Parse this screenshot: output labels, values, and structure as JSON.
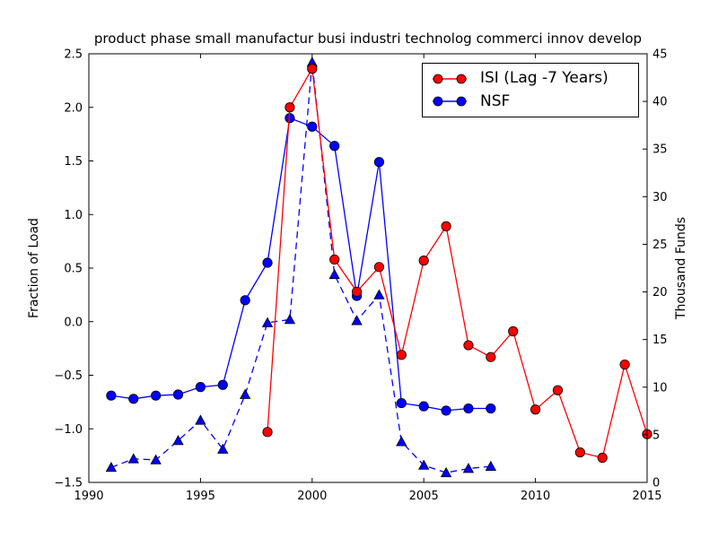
{
  "chart_data": {
    "type": "line",
    "title": "product phase small manufactur busi industri technolog commerci innov develop",
    "xlabel": "",
    "left_ylabel": "Fraction of Load",
    "right_ylabel": "Thousand Funds",
    "xlim": [
      1990,
      2015
    ],
    "left_ylim": [
      -1.5,
      2.5
    ],
    "right_ylim": [
      0,
      45
    ],
    "x_tick_labels": [
      "1990",
      "1995",
      "2000",
      "2005",
      "2010",
      "2015"
    ],
    "x_tick_values": [
      1990,
      1995,
      2000,
      2005,
      2010,
      2015
    ],
    "left_tick_labels": [
      "2.5",
      "2.0",
      "1.5",
      "1.0",
      "0.5",
      "0.0",
      "−0.5",
      "−1.0",
      "−1.5"
    ],
    "left_tick_values": [
      2.5,
      2.0,
      1.5,
      1.0,
      0.5,
      0.0,
      -0.5,
      -1.0,
      -1.5
    ],
    "right_tick_labels": [
      "45",
      "40",
      "35",
      "30",
      "25",
      "20",
      "15",
      "10",
      "5",
      "0"
    ],
    "right_tick_values": [
      45,
      40,
      35,
      30,
      25,
      20,
      15,
      10,
      5,
      0
    ],
    "grid": false,
    "legend_position": "upper right",
    "legend_entries": [
      "ISI (Lag -7 Years)",
      "NSF"
    ],
    "series": [
      {
        "name": "ISI (Lag -7 Years)",
        "color": "#ff0000",
        "style": "solid",
        "marker": "circle",
        "axis": "left",
        "in_legend": true,
        "x": [
          1998,
          1999,
          2000,
          2001,
          2002,
          2003,
          2004,
          2005,
          2006,
          2007,
          2008,
          2009,
          2010,
          2011,
          2012,
          2013,
          2014,
          2015
        ],
        "y": [
          -1.03,
          2.0,
          2.36,
          0.58,
          0.28,
          0.51,
          -0.31,
          0.57,
          0.89,
          -0.22,
          -0.33,
          -0.09,
          -0.82,
          -0.64,
          -1.22,
          -1.27,
          -0.4,
          -1.05
        ]
      },
      {
        "name": "NSF",
        "color": "#0000ff",
        "style": "solid",
        "marker": "circle",
        "axis": "left",
        "in_legend": true,
        "x": [
          1991,
          1992,
          1993,
          1994,
          1995,
          1996,
          1997,
          1998,
          1999,
          2000,
          2001,
          2002,
          2003,
          2004,
          2005,
          2006,
          2007,
          2008
        ],
        "y": [
          -0.69,
          -0.72,
          -0.69,
          -0.68,
          -0.61,
          -0.59,
          0.2,
          0.55,
          1.9,
          1.82,
          1.64,
          0.24,
          1.49,
          -0.76,
          -0.79,
          -0.83,
          -0.81,
          -0.81
        ]
      },
      {
        "name": "NSF funds (dashed, no legend entry)",
        "color": "#0000ff",
        "style": "dashed",
        "marker": "triangle-up",
        "axis": "left",
        "in_legend": false,
        "x": [
          1991,
          1992,
          1993,
          1994,
          1995,
          1996,
          1997,
          1998,
          1999,
          2000,
          2001,
          2002,
          2003,
          2004,
          2005,
          2006,
          2007,
          2008
        ],
        "y": [
          -1.36,
          -1.28,
          -1.29,
          -1.11,
          -0.92,
          -1.19,
          -0.68,
          -0.01,
          0.02,
          2.42,
          0.44,
          0.01,
          0.25,
          -1.12,
          -1.34,
          -1.41,
          -1.37,
          -1.35
        ],
        "right_axis_equivalent": [
          1.6,
          2.5,
          2.4,
          4.4,
          6.5,
          3.5,
          9.2,
          16.8,
          17.1,
          44.1,
          21.8,
          17.0,
          19.7,
          4.3,
          1.8,
          1.0,
          1.5,
          1.7
        ]
      }
    ],
    "colors": {
      "axes": "#000000",
      "background": "#ffffff",
      "text": "#000000"
    }
  }
}
